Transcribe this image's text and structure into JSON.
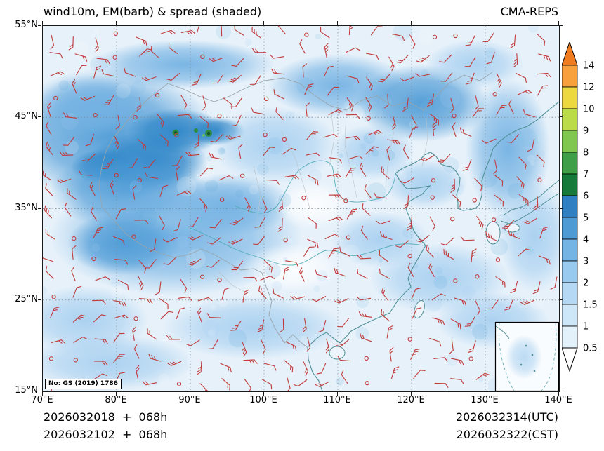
{
  "header": {
    "title": "wind10m, EM(barb) & spread (shaded)",
    "model": "CMA-REPS"
  },
  "axes": {
    "x_ticks": [
      "70°E",
      "80°E",
      "90°E",
      "100°E",
      "110°E",
      "120°E",
      "130°E",
      "140°E"
    ],
    "y_ticks": [
      "55°N",
      "45°N",
      "35°N",
      "25°N",
      "15°N"
    ]
  },
  "colorbar": {
    "levels": [
      "14",
      "12",
      "10",
      "9",
      "8",
      "7",
      "6",
      "5",
      "4",
      "3",
      "2",
      "1.5",
      "1",
      "0.5"
    ],
    "colors": [
      "#F6A13C",
      "#EDD93F",
      "#BCDB48",
      "#7FC751",
      "#3F9F48",
      "#17793A",
      "#2F7FC1",
      "#4E9AD5",
      "#74B4E4",
      "#98C9EE",
      "#B5D9F4",
      "#CDE6F8",
      "#E3F1FB"
    ],
    "over_color": "#EF7D1F",
    "under_color": "#FFFFFF"
  },
  "license": "No: GS (2019) 1786",
  "footer": {
    "init_utc": "2026032018  +  068h",
    "init_cst": "2026032102  +  068h",
    "valid_utc": "2026032314(UTC)",
    "valid_cst": "2026032322(CST)"
  },
  "chart_data": {
    "type": "heatmap",
    "title": "wind10m, EM(barb) & spread (shaded)",
    "model": "CMA-REPS",
    "description": "10 m wind: ensemble mean wind barbs (red) over ensemble spread shading",
    "x_tick_labels": [
      "70°E",
      "80°E",
      "90°E",
      "100°E",
      "110°E",
      "120°E",
      "130°E",
      "140°E"
    ],
    "y_tick_labels": [
      "55°N",
      "45°N",
      "35°N",
      "25°N",
      "15°N"
    ],
    "lon_range_deg_e": [
      70,
      140
    ],
    "lat_range_deg_n": [
      15,
      55
    ],
    "colorbar_levels": [
      0.5,
      1,
      1.5,
      2,
      3,
      4,
      5,
      6,
      7,
      8,
      9,
      10,
      12,
      14
    ],
    "legend_position": "right",
    "grid": true,
    "barb_color": "#C13B3B",
    "init_times": [
      "2026032018  +  068h",
      "2026032102  +  068h"
    ],
    "valid_times": [
      "2026032314(UTC)",
      "2026032322(CST)"
    ]
  }
}
